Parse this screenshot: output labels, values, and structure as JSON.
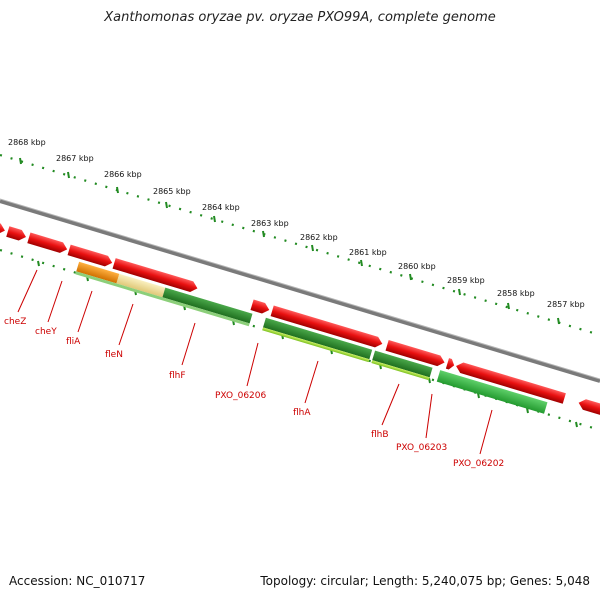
{
  "title": "Xanthomonas oryzae pv. oryzae PXO99A, complete genome",
  "footer": {
    "accession": "Accession: NC_010717",
    "summary": "Topology: circular; Length: 5,240,075 bp; Genes: 5,048"
  },
  "scale_labels": [
    "2868 kbp",
    "2867 kbp",
    "2866 kbp",
    "2865 kbp",
    "2864 kbp",
    "2863 kbp",
    "2862 kbp",
    "2861 kbp",
    "2860 kbp",
    "2859 kbp",
    "2858 kbp",
    "2857 kbp"
  ],
  "gene_labels": [
    "cheZ",
    "cheY",
    "fliA",
    "fleN",
    "flhF",
    "PXO_06206",
    "flhA",
    "flhB",
    "PXO_06203",
    "PXO_06202"
  ],
  "colors": {
    "forward_strand": "#e81010",
    "reverse_dark": "#2f8f2f",
    "reverse_mid": "#3cb043",
    "reverse_light": "#a6e03a",
    "orange": "#f08a10",
    "pale": "#efe1a0",
    "backbone": "#808080",
    "scale": "#228b22",
    "label": "#cc0000"
  }
}
